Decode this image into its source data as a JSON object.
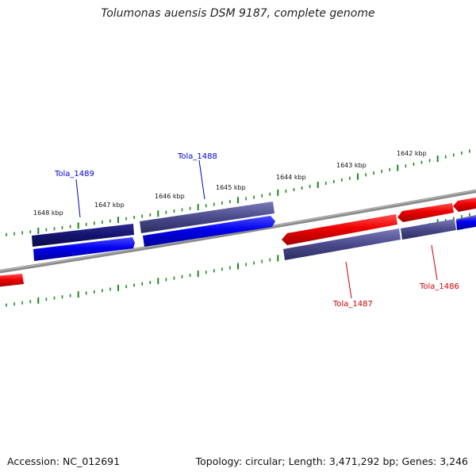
{
  "title": "Tolumonas auensis DSM 9187, complete genome",
  "footer": {
    "accession": "Accession: NC_012691",
    "summary": "Topology: circular; Length: 3,471,292 bp; Genes: 3,246"
  },
  "ticks": [
    "1642 kbp",
    "1643 kbp",
    "1644 kbp",
    "1645 kbp",
    "1646 kbp",
    "1647 kbp",
    "1648 kbp"
  ],
  "genes": [
    {
      "name": "Tola_1489",
      "color": "#0000cc"
    },
    {
      "name": "Tola_1488",
      "color": "#0000cc"
    },
    {
      "name": "Tola_1487",
      "color": "#cc0000"
    },
    {
      "name": "Tola_1486",
      "color": "#cc0000"
    }
  ],
  "colors": {
    "forward_cds": "#0000ee",
    "reverse_cds": "#ee0000",
    "gene_track": "#4a4a8c",
    "gene_track_dark": "#141470",
    "backbone": "#808080",
    "ticks": "#1a8a1a"
  }
}
